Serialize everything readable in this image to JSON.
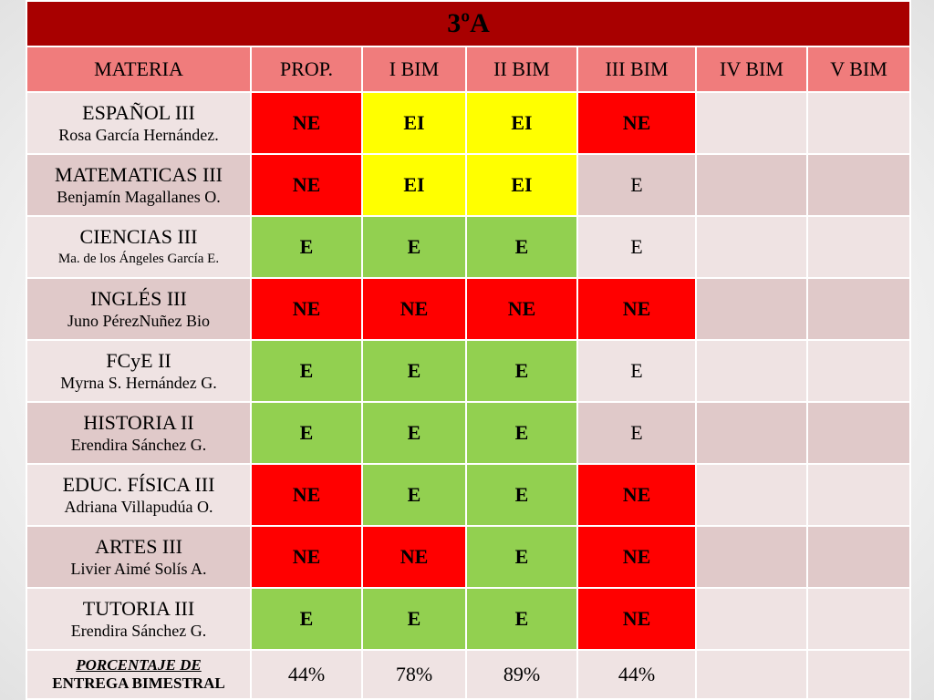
{
  "title": "3ºA",
  "headers": [
    "MATERIA",
    "PROP.",
    "I BIM",
    "II BIM",
    "III BIM",
    "IV BIM",
    "V BIM"
  ],
  "rows": [
    {
      "subject": "ESPAÑOL III",
      "teacher": "Rosa García Hernández.",
      "grades": [
        "NE",
        "EI",
        "EI",
        "NE",
        "",
        ""
      ]
    },
    {
      "subject": "MATEMATICAS III",
      "teacher": "Benjamín Magallanes O.",
      "grades": [
        "NE",
        "EI",
        "EI",
        "E",
        "",
        ""
      ]
    },
    {
      "subject": "CIENCIAS III",
      "teacher": "Ma. de los Ángeles García E.",
      "grades": [
        "E",
        "E",
        "E",
        "E",
        "",
        ""
      ]
    },
    {
      "subject": "INGLÉS III",
      "teacher": "Juno PérezNuñez Bio",
      "grades": [
        "NE",
        "NE",
        "NE",
        "NE",
        "",
        ""
      ]
    },
    {
      "subject": "FCyE II",
      "teacher": "Myrna S. Hernández G.",
      "grades": [
        "E",
        "E",
        "E",
        "E",
        "",
        ""
      ]
    },
    {
      "subject": "HISTORIA II",
      "teacher": "Erendira Sánchez G.",
      "grades": [
        "E",
        "E",
        "E",
        "E",
        "",
        ""
      ]
    },
    {
      "subject": "EDUC. FÍSICA III",
      "teacher": "Adriana Villapudúa O.",
      "grades": [
        "NE",
        "E",
        "E",
        "NE",
        "",
        ""
      ]
    },
    {
      "subject": "ARTES III",
      "teacher": "Livier Aimé Solís A.",
      "grades": [
        "NE",
        "NE",
        "E",
        "NE",
        "",
        ""
      ]
    },
    {
      "subject": "TUTORIA III",
      "teacher": "Erendira Sánchez G.",
      "grades": [
        "E",
        "E",
        "E",
        "NE",
        "",
        ""
      ]
    }
  ],
  "footer": {
    "label_line1": "PORCENTAJE DE",
    "label_line2": "ENTREGA BIMESTRAL",
    "percentages": [
      "44%",
      "78%",
      "89%",
      "44%",
      "",
      ""
    ]
  },
  "colors": {
    "title_bg": "#a80000",
    "header_bg": "#f07c7c",
    "NE": "#ff0000",
    "EI": "#ffff00",
    "E": "#92d050"
  },
  "plain_cells": [
    {
      "row": 1,
      "col": 3
    },
    {
      "row": 2,
      "col": 3
    },
    {
      "row": 4,
      "col": 3
    },
    {
      "row": 5,
      "col": 3
    }
  ]
}
